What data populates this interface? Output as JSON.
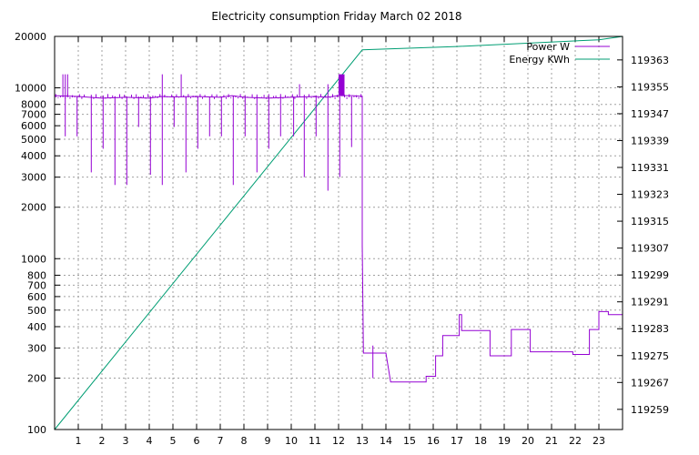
{
  "chart_data": {
    "type": "line",
    "title": "Electricity consumption Friday March 02 2018",
    "xlabel": "",
    "ylabel": "",
    "x_ticks": [
      1,
      2,
      3,
      4,
      5,
      6,
      7,
      8,
      9,
      10,
      11,
      12,
      13,
      14,
      15,
      16,
      17,
      18,
      19,
      20,
      21,
      22,
      23
    ],
    "xlim": [
      0,
      24
    ],
    "y_scale": "log",
    "ylim": [
      100,
      20000
    ],
    "y_ticks": [
      100,
      200,
      300,
      400,
      500,
      600,
      700,
      800,
      1000,
      2000,
      3000,
      4000,
      5000,
      6000,
      7000,
      8000,
      10000,
      20000
    ],
    "y2lim": [
      119253,
      119370
    ],
    "y2_ticks": [
      119259,
      119267,
      119275,
      119283,
      119291,
      119299,
      119307,
      119315,
      119323,
      119331,
      119339,
      119347,
      119355,
      119363
    ],
    "grid": true,
    "legend_position": "top-right",
    "series": [
      {
        "name": "Power W",
        "axis": "left",
        "color": "#9400d3",
        "base": [
          [
            0,
            9000
          ],
          [
            1,
            8900
          ],
          [
            2,
            8700
          ],
          [
            3,
            8800
          ],
          [
            4,
            8700
          ],
          [
            4.5,
            8900
          ],
          [
            5,
            8850
          ],
          [
            6,
            8900
          ],
          [
            7,
            8800
          ],
          [
            7.5,
            9000
          ],
          [
            8,
            8800
          ],
          [
            9,
            8700
          ],
          [
            10,
            8800
          ],
          [
            11,
            8900
          ],
          [
            11.5,
            8800
          ],
          [
            12,
            9000
          ],
          [
            12.6,
            9000
          ],
          [
            13,
            8900
          ],
          [
            13,
            1200
          ],
          [
            13.05,
            280
          ],
          [
            14,
            280
          ],
          [
            14.2,
            190
          ],
          [
            15.7,
            190
          ],
          [
            15.7,
            205
          ],
          [
            16.1,
            205
          ],
          [
            16.1,
            270
          ],
          [
            16.4,
            270
          ],
          [
            16.4,
            355
          ],
          [
            17.1,
            355
          ],
          [
            17.1,
            470
          ],
          [
            17.2,
            470
          ],
          [
            17.2,
            380
          ],
          [
            18.4,
            380
          ],
          [
            18.4,
            270
          ],
          [
            19.3,
            270
          ],
          [
            19.3,
            385
          ],
          [
            20.1,
            385
          ],
          [
            20.1,
            285
          ],
          [
            21.9,
            285
          ],
          [
            21.9,
            275
          ],
          [
            22.6,
            275
          ],
          [
            22.6,
            385
          ],
          [
            23,
            385
          ],
          [
            23,
            490
          ],
          [
            23.4,
            490
          ],
          [
            23.4,
            470
          ],
          [
            24,
            470
          ]
        ],
        "spikes_down": [
          [
            0.45,
            5200
          ],
          [
            0.95,
            5200
          ],
          [
            1.55,
            3200
          ],
          [
            2.05,
            4400
          ],
          [
            2.55,
            2700
          ],
          [
            3.05,
            2700
          ],
          [
            3.55,
            5900
          ],
          [
            4.05,
            3100
          ],
          [
            4.55,
            2700
          ],
          [
            5.05,
            5900
          ],
          [
            5.55,
            3200
          ],
          [
            6.05,
            4400
          ],
          [
            6.55,
            5200
          ],
          [
            7.05,
            5200
          ],
          [
            7.55,
            2700
          ],
          [
            8.05,
            5200
          ],
          [
            8.55,
            3200
          ],
          [
            9.05,
            4400
          ],
          [
            9.55,
            5200
          ],
          [
            10.1,
            5200
          ],
          [
            10.55,
            3000
          ],
          [
            11.05,
            5200
          ],
          [
            11.55,
            2500
          ],
          [
            12.05,
            3000
          ],
          [
            12.55,
            4500
          ],
          [
            13.0,
            5000
          ]
        ],
        "spikes_up": [
          [
            0.35,
            12000
          ],
          [
            0.45,
            12000
          ],
          [
            0.55,
            12000
          ],
          [
            4.55,
            12000
          ],
          [
            5.35,
            12000
          ],
          [
            10.35,
            10500
          ],
          [
            11.55,
            10500
          ],
          [
            13.45,
            310
          ]
        ],
        "dense_band": [
          12.0,
          12.25,
          9000,
          12000
        ]
      },
      {
        "name": "Energy KWh",
        "axis": "right",
        "color": "#009e73",
        "points": [
          [
            0,
            119253
          ],
          [
            13,
            119366
          ],
          [
            17,
            119367
          ],
          [
            23,
            119369
          ],
          [
            24,
            119370
          ]
        ]
      }
    ]
  }
}
